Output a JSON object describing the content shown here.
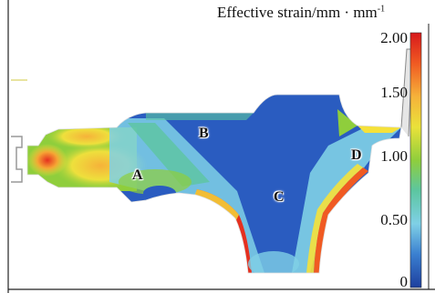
{
  "legend": {
    "title": "Effective strain/mm · mm",
    "title_sup": "-1",
    "ticks": [
      "2.00",
      "1.50",
      "1.00",
      "0.50",
      "0"
    ],
    "colors": [
      "#d7191c",
      "#f57c1f",
      "#f5e13a",
      "#8fce3c",
      "#49bfa0",
      "#7fd0e6",
      "#3a7fd0",
      "#1e3f9e"
    ]
  },
  "labels": {
    "A": "A",
    "B": "B",
    "C": "C",
    "D": "D"
  }
}
